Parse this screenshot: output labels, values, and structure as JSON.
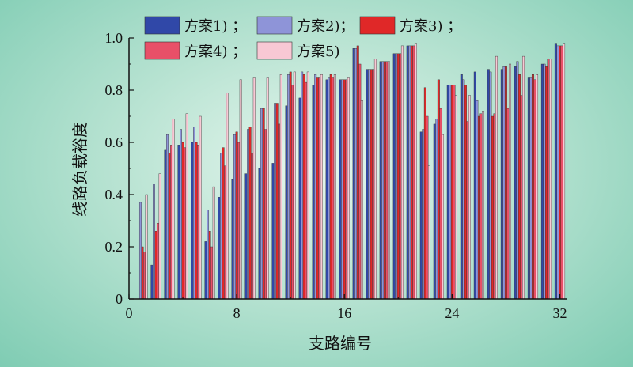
{
  "chart_data": {
    "type": "bar",
    "title": "",
    "xlabel": "支路编号",
    "ylabel": "线路负载裕度",
    "xlim": [
      0,
      32.5
    ],
    "ylim": [
      0,
      1.0
    ],
    "xticks": [
      0,
      8,
      16,
      24,
      32
    ],
    "yticks": [
      0,
      0.2,
      0.4,
      0.6,
      0.8,
      1.0
    ],
    "xtick_labels": [
      "0",
      "8",
      "16",
      "24",
      "32"
    ],
    "ytick_labels": [
      "0",
      "0.2",
      "0.4",
      "0.6",
      "0.8",
      "1.0"
    ],
    "legend_position": "top",
    "categories": [
      1,
      2,
      3,
      4,
      5,
      6,
      7,
      8,
      9,
      10,
      11,
      12,
      13,
      14,
      15,
      16,
      17,
      18,
      19,
      20,
      21,
      22,
      23,
      24,
      25,
      26,
      27,
      28,
      29,
      30,
      31,
      32
    ],
    "series": [
      {
        "name": "方案1) ；",
        "color": "#3048a8",
        "values": [
          0.0,
          0.13,
          0.57,
          0.59,
          0.6,
          0.22,
          0.39,
          0.46,
          0.48,
          0.5,
          0.52,
          0.74,
          0.77,
          0.82,
          0.84,
          0.84,
          0.96,
          0.88,
          0.91,
          0.94,
          0.97,
          0.64,
          0.67,
          0.82,
          0.86,
          0.87,
          0.88,
          0.88,
          0.89,
          0.85,
          0.9,
          0.98
        ]
      },
      {
        "name": "方案2)；",
        "color": "#8e94d8",
        "values": [
          0.37,
          0.44,
          0.63,
          0.65,
          0.66,
          0.34,
          0.56,
          0.63,
          0.65,
          0.73,
          0.75,
          0.86,
          0.87,
          0.86,
          0.85,
          0.84,
          0.96,
          0.88,
          0.91,
          0.94,
          0.97,
          0.65,
          0.69,
          0.82,
          0.84,
          0.76,
          0.87,
          0.89,
          0.91,
          0.85,
          0.9,
          0.97
        ]
      },
      {
        "name": "方案3) ；",
        "color": "#e02828",
        "values": [
          0.2,
          0.26,
          0.56,
          0.6,
          0.6,
          0.26,
          0.58,
          0.64,
          0.66,
          0.73,
          0.75,
          0.87,
          0.86,
          0.85,
          0.86,
          0.84,
          0.97,
          0.88,
          0.91,
          0.94,
          0.97,
          0.81,
          0.84,
          0.82,
          0.82,
          0.7,
          0.7,
          0.89,
          0.86,
          0.86,
          0.89,
          0.97
        ]
      },
      {
        "name": "方案4) ；",
        "color": "#e85068",
        "values": [
          0.18,
          0.29,
          0.59,
          0.58,
          0.59,
          0.2,
          0.51,
          0.6,
          0.56,
          0.65,
          0.67,
          0.82,
          0.83,
          0.85,
          0.85,
          0.84,
          0.9,
          0.88,
          0.91,
          0.94,
          0.97,
          0.7,
          0.73,
          0.82,
          0.68,
          0.71,
          0.71,
          0.73,
          0.78,
          0.84,
          0.92,
          0.97
        ]
      },
      {
        "name": "方案5)",
        "color": "#f8c8d4",
        "values": [
          0.4,
          0.48,
          0.69,
          0.71,
          0.7,
          0.43,
          0.79,
          0.84,
          0.85,
          0.85,
          0.86,
          0.87,
          0.87,
          0.86,
          0.86,
          0.85,
          0.76,
          0.92,
          0.91,
          0.97,
          0.98,
          0.51,
          0.63,
          0.78,
          0.78,
          0.72,
          0.93,
          0.9,
          0.93,
          0.86,
          0.92,
          0.98
        ]
      }
    ]
  }
}
